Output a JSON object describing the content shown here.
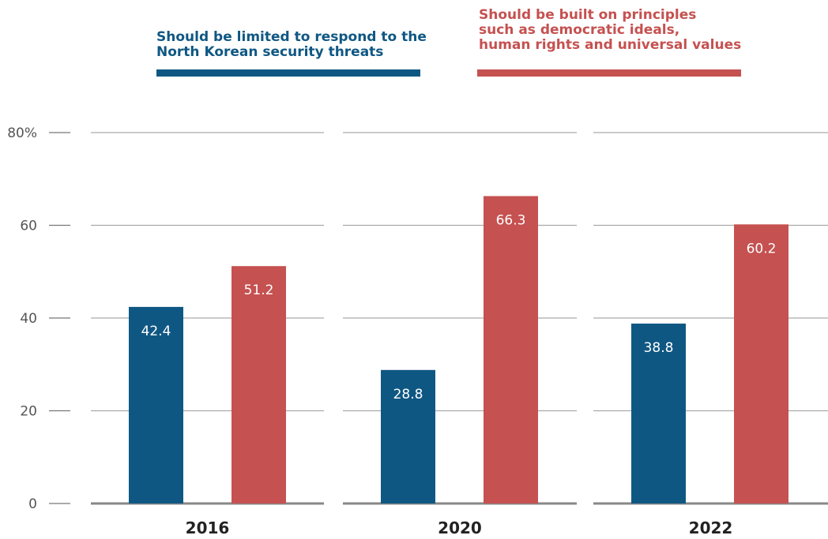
{
  "legend": [
    {
      "label": "Should be limited to respond to the\nNorth Korean security threats",
      "color": "#0f5783"
    },
    {
      "label": "Should be built on principles\nsuch as democratic ideals,\nhuman rights and universal values",
      "color": "#c55150"
    }
  ],
  "chart_data": {
    "type": "bar",
    "categories": [
      "2016",
      "2020",
      "2022"
    ],
    "series": [
      {
        "name": "Should be limited to respond to the North Korean security threats",
        "values": [
          42.4,
          28.8,
          38.8
        ],
        "color": "#0f5783"
      },
      {
        "name": "Should be built on principles such as democratic ideals, human rights and universal values",
        "values": [
          51.2,
          66.3,
          60.2
        ],
        "color": "#c55150"
      }
    ],
    "ylim": [
      0,
      80
    ],
    "yticks": [
      0,
      20,
      40,
      60,
      80
    ],
    "ytick_labels": [
      "0",
      "20",
      "40",
      "60",
      "80%"
    ],
    "value_labels": [
      [
        "42.4",
        "28.8",
        "38.8"
      ],
      [
        "51.2",
        "66.3",
        "60.2"
      ]
    ],
    "grid": true,
    "legend_position": "top"
  }
}
